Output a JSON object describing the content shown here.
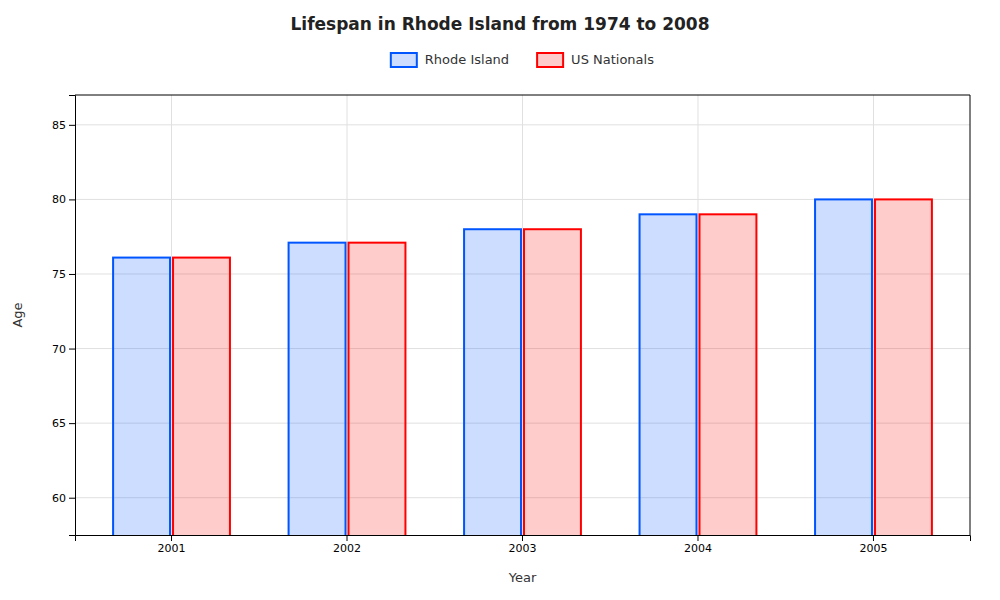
{
  "chart_data": {
    "type": "bar",
    "title": "Lifespan in Rhode Island from 1974 to 2008",
    "xlabel": "Year",
    "ylabel": "Age",
    "categories": [
      "2001",
      "2002",
      "2003",
      "2004",
      "2005"
    ],
    "series": [
      {
        "name": "Rhode Island",
        "color": "#0055FF",
        "values": [
          76.1,
          77.1,
          78.0,
          79.0,
          80.0
        ]
      },
      {
        "name": "US Nationals",
        "color": "#FF0000",
        "values": [
          76.1,
          77.1,
          78.0,
          79.0,
          80.0
        ]
      }
    ],
    "ylim": [
      57.5,
      87
    ],
    "yticks": [
      60,
      65,
      70,
      75,
      80,
      85
    ],
    "grid": true,
    "legend": "top"
  }
}
